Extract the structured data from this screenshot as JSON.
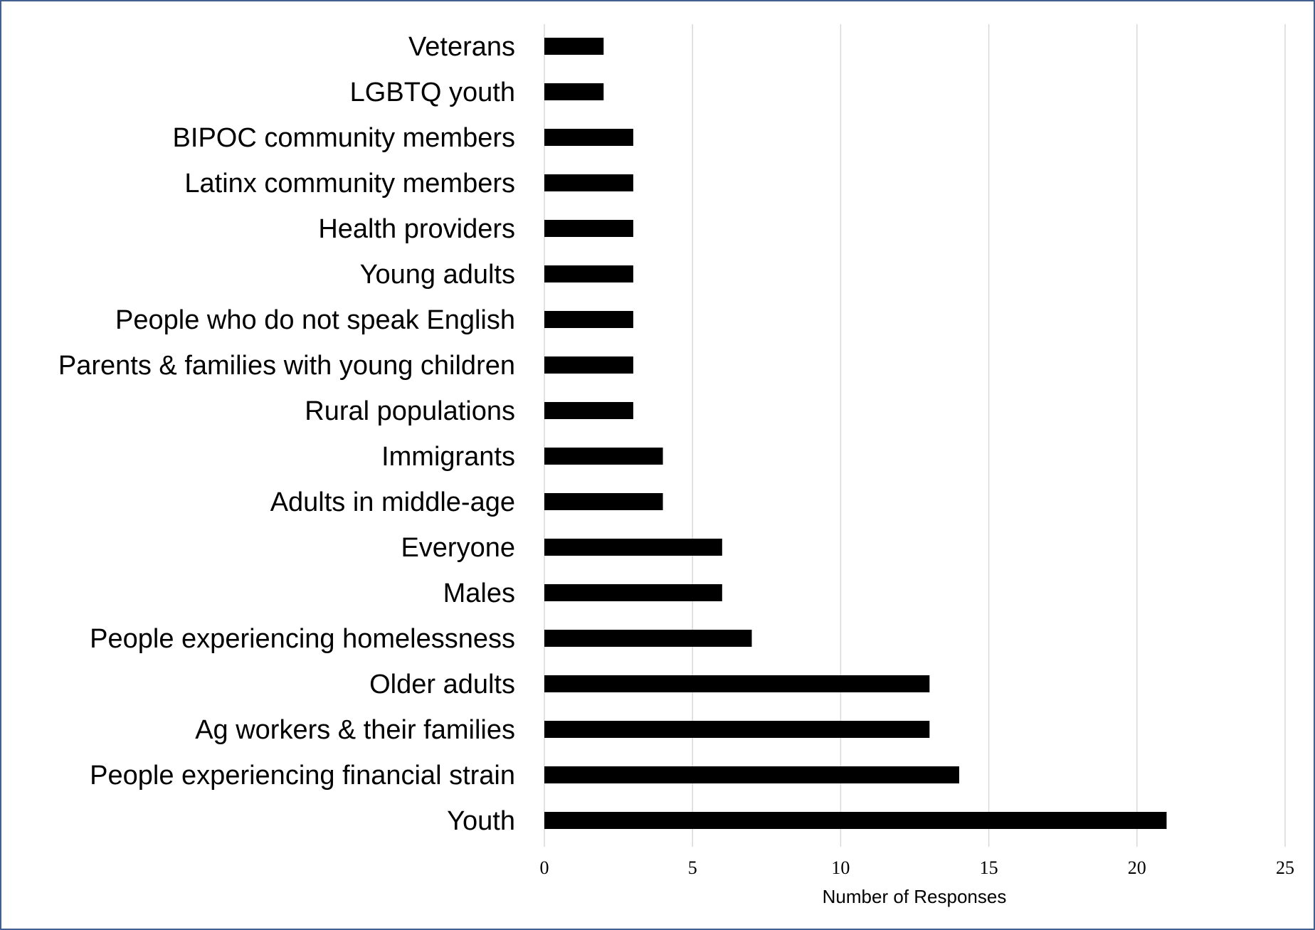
{
  "chart_data": {
    "type": "bar",
    "orientation": "horizontal",
    "categories": [
      "Veterans",
      "LGBTQ youth",
      "BIPOC community members",
      "Latinx community members",
      "Health providers",
      "Young adults",
      "People who do not speak English",
      "Parents & families with young children",
      "Rural populations",
      "Immigrants",
      "Adults in middle-age",
      "Everyone",
      "Males",
      "People experiencing homelessness",
      "Older adults",
      "Ag workers & their families",
      "People experiencing financial strain",
      "Youth"
    ],
    "values": [
      2,
      2,
      3,
      3,
      3,
      3,
      3,
      3,
      3,
      4,
      4,
      6,
      6,
      7,
      13,
      13,
      14,
      21
    ],
    "title": "",
    "xlabel": "Number of Responses",
    "ylabel": "",
    "xlim": [
      0,
      25
    ],
    "xticks": [
      "0",
      "5",
      "10",
      "15",
      "20",
      "25"
    ],
    "grid": "vertical",
    "bar_color": "#000000",
    "grid_color": "#d9d9d9",
    "frame_color": "#41608f"
  }
}
